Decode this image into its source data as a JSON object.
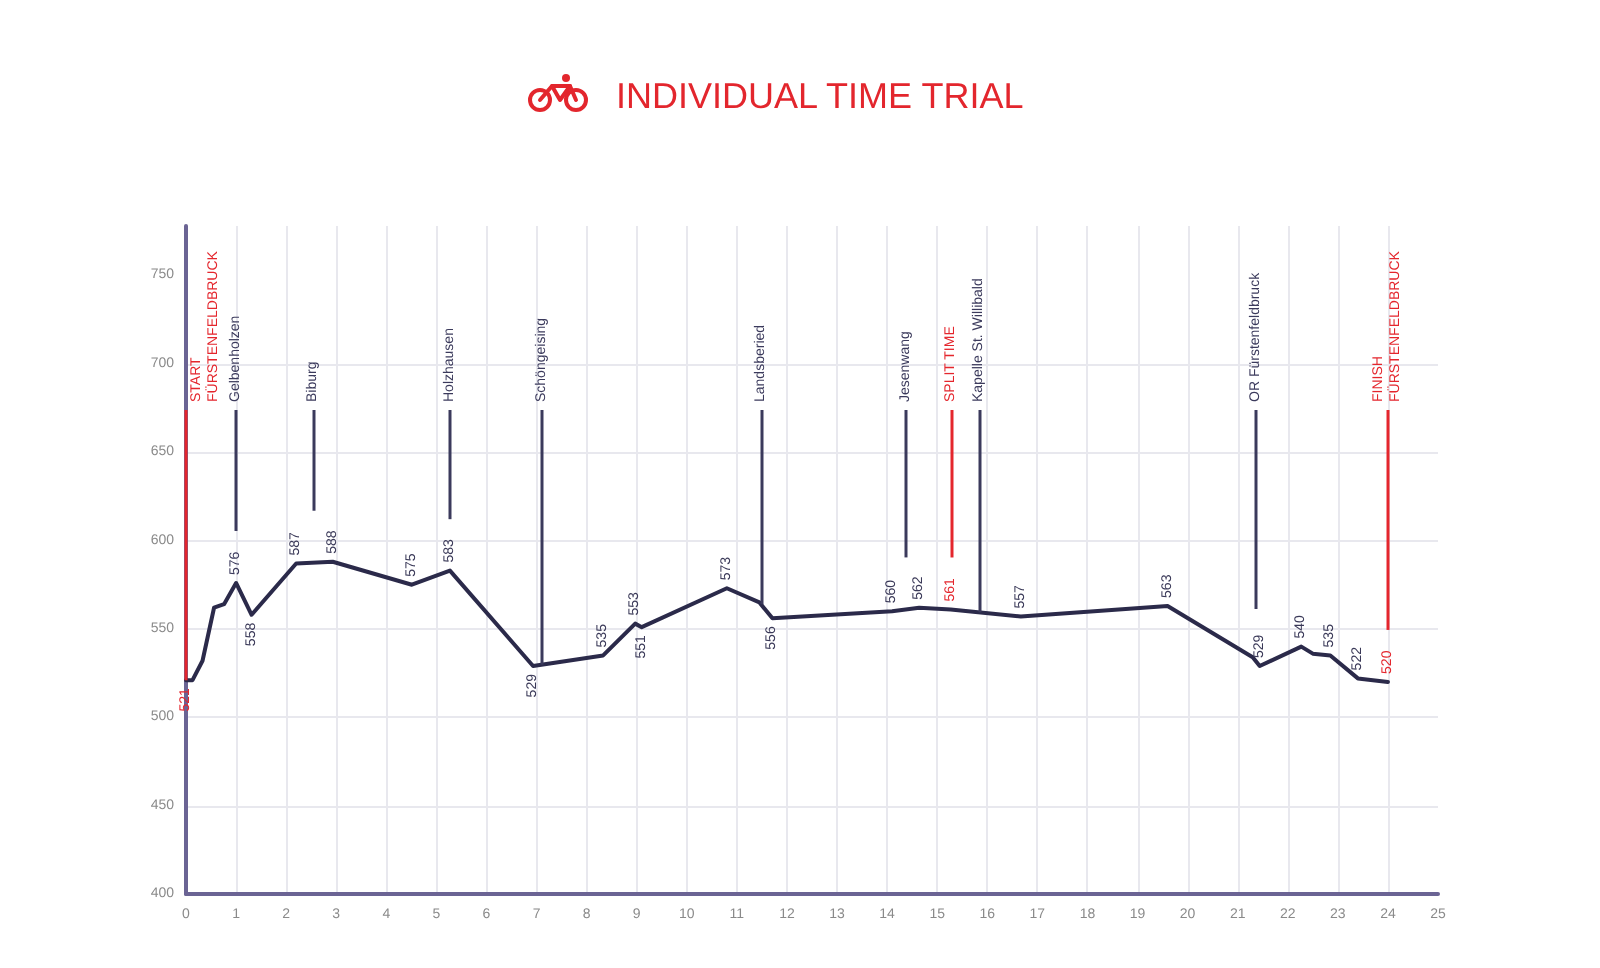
{
  "chart_data": {
    "type": "line",
    "title": "INDIVIDUAL TIME TRIAL",
    "x": [
      0,
      0.13,
      0.33,
      0.56,
      0.76,
      1.0,
      1.31,
      2.2,
      2.93,
      4.51,
      5.27,
      6.93,
      8.33,
      8.97,
      9.1,
      10.8,
      11.45,
      11.71,
      14.1,
      14.64,
      15.27,
      16.67,
      19.6,
      21.3,
      21.44,
      22.27,
      22.5,
      22.85,
      23.4,
      24.0
    ],
    "values": [
      521,
      521,
      532,
      562,
      564,
      576,
      558,
      587,
      588,
      575,
      583,
      529,
      535,
      553,
      551,
      573,
      565,
      556,
      560,
      562,
      561,
      557,
      563,
      534,
      529,
      540,
      536,
      535,
      522,
      520
    ],
    "value_labels": [
      "521",
      null,
      null,
      null,
      null,
      "576",
      "558",
      "587",
      "588",
      "575",
      "583",
      "529",
      "535",
      "553",
      "551",
      "573",
      null,
      "556",
      "560",
      "562",
      "561",
      "557",
      "563",
      null,
      "529",
      "540",
      null,
      "535",
      "522",
      "520"
    ],
    "color": "#2b2a4a",
    "marker": "none",
    "grid": true,
    "xlim": [
      0,
      25
    ],
    "xticks": [
      0,
      1,
      2,
      3,
      4,
      5,
      6,
      7,
      8,
      9,
      10,
      11,
      12,
      13,
      14,
      15,
      16,
      17,
      18,
      19,
      20,
      21,
      22,
      23,
      24,
      25
    ],
    "ylim": [
      400,
      778
    ],
    "yticks": [
      400,
      450,
      500,
      550,
      600,
      650,
      700,
      750
    ],
    "ref_lines": [
      {
        "axis": "x",
        "value": 0,
        "label": "START\nFÜRSTENFELDBRUCK",
        "color": "#e4262d"
      },
      {
        "axis": "x",
        "value": 1,
        "label": "Gelbenholzen",
        "color": "#3b3a5c"
      },
      {
        "axis": "x",
        "value": 2.53,
        "label": "Biburg",
        "color": "#3b3a5c"
      },
      {
        "axis": "x",
        "value": 5.28,
        "label": "Holzhausen",
        "color": "#3b3a5c"
      },
      {
        "axis": "x",
        "value": 7.1,
        "label": "Schöngeising",
        "color": "#3b3a5c"
      },
      {
        "axis": "x",
        "value": 11.48,
        "label": "Landsberied",
        "color": "#3b3a5c"
      },
      {
        "axis": "x",
        "value": 14.38,
        "label": "Jesenwang",
        "color": "#3b3a5c"
      },
      {
        "axis": "x",
        "value": 15.27,
        "label": "SPLIT TIME",
        "color": "#e4262d"
      },
      {
        "axis": "x",
        "value": 15.84,
        "label": "Kapelle St. Willibald",
        "color": "#3b3a5c"
      },
      {
        "axis": "x",
        "value": 21.36,
        "label": "OR Fürstenfeldbruck",
        "color": "#3b3a5c"
      },
      {
        "axis": "x",
        "value": 24,
        "label": "FINISH\nFÜRSTENFELDBRUCK",
        "color": "#e4262d"
      }
    ]
  }
}
